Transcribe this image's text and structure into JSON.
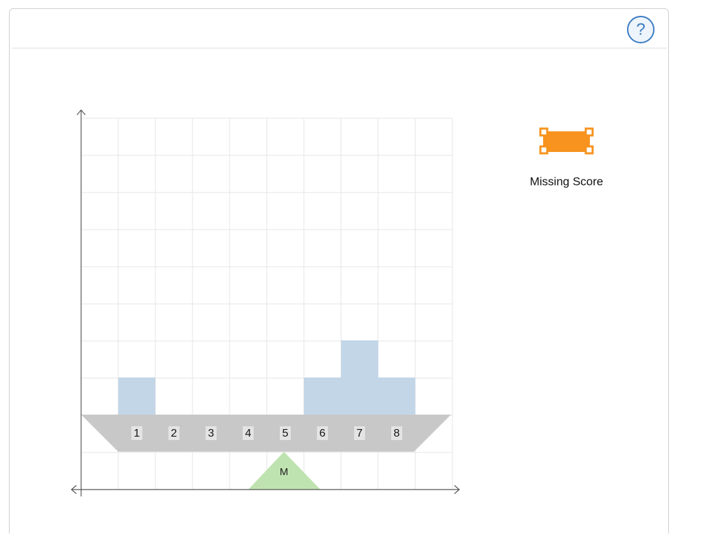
{
  "help": {
    "label": "?"
  },
  "beam": {
    "labels": [
      "1",
      "2",
      "3",
      "4",
      "5",
      "6",
      "7",
      "8"
    ],
    "counts": [
      1,
      0,
      0,
      0,
      0,
      1,
      2,
      1
    ]
  },
  "fulcrum": {
    "label": "M"
  },
  "tool": {
    "label": "Missing Score"
  }
}
